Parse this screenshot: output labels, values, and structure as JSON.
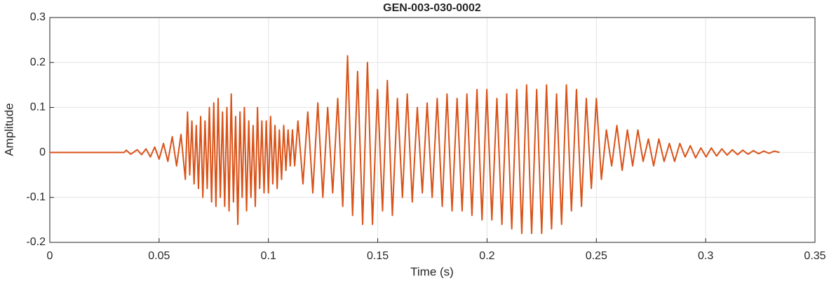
{
  "chart_data": {
    "type": "line",
    "title": "GEN-003-030-0002",
    "x_label": "Time (s)",
    "y_label": "Amplitude",
    "color": "#d95319",
    "grid": true,
    "xlim": [
      0,
      0.35
    ],
    "xticks": [
      0,
      0.05,
      0.1,
      0.15,
      0.2,
      0.25,
      0.3,
      0.35
    ],
    "ylim": [
      -0.2,
      0.3
    ],
    "yticks": [
      -0.2,
      -0.1,
      0,
      0.1,
      0.2,
      0.3
    ],
    "x": [
      0,
      0.01,
      0.02,
      0.034,
      0.035,
      0.037,
      0.04,
      0.042,
      0.044,
      0.046,
      0.048,
      0.05,
      0.052,
      0.054,
      0.056,
      0.058,
      0.06,
      0.062,
      0.063,
      0.064,
      0.065,
      0.066,
      0.067,
      0.068,
      0.069,
      0.07,
      0.071,
      0.072,
      0.073,
      0.074,
      0.075,
      0.076,
      0.077,
      0.078,
      0.079,
      0.08,
      0.081,
      0.082,
      0.083,
      0.084,
      0.085,
      0.086,
      0.087,
      0.088,
      0.089,
      0.09,
      0.091,
      0.092,
      0.093,
      0.094,
      0.095,
      0.096,
      0.097,
      0.098,
      0.099,
      0.1,
      0.101,
      0.102,
      0.103,
      0.104,
      0.105,
      0.106,
      0.107,
      0.108,
      0.109,
      0.11,
      0.111,
      0.112,
      0.1135,
      0.1158,
      0.118,
      0.1203,
      0.1226,
      0.1249,
      0.1271,
      0.1294,
      0.1317,
      0.134,
      0.1362,
      0.1385,
      0.1408,
      0.1431,
      0.1453,
      0.1476,
      0.1499,
      0.1522,
      0.1544,
      0.1567,
      0.159,
      0.1613,
      0.1635,
      0.1658,
      0.1681,
      0.1704,
      0.1726,
      0.1749,
      0.1772,
      0.1795,
      0.1817,
      0.184,
      0.1863,
      0.1886,
      0.1908,
      0.1931,
      0.1954,
      0.1977,
      0.1999,
      0.2022,
      0.2045,
      0.2068,
      0.209,
      0.2113,
      0.2136,
      0.2159,
      0.2181,
      0.2204,
      0.2227,
      0.225,
      0.2272,
      0.2295,
      0.2318,
      0.2341,
      0.2363,
      0.2386,
      0.2409,
      0.2432,
      0.2454,
      0.2477,
      0.25,
      0.2523,
      0.2546,
      0.257,
      0.2594,
      0.2618,
      0.2642,
      0.2666,
      0.269,
      0.2714,
      0.2738,
      0.2762,
      0.2786,
      0.281,
      0.2834,
      0.2858,
      0.2882,
      0.2906,
      0.293,
      0.2954,
      0.2978,
      0.3002,
      0.3026,
      0.305,
      0.3074,
      0.3098,
      0.3122,
      0.3146,
      0.317,
      0.3194,
      0.3218,
      0.3242,
      0.3266,
      0.329,
      0.3314,
      0.3338
    ],
    "values": [
      0,
      0,
      0,
      0,
      0.005,
      -0.004,
      0.006,
      -0.005,
      0.008,
      -0.01,
      0.012,
      -0.015,
      0.02,
      -0.02,
      0.035,
      -0.03,
      0.04,
      -0.06,
      0.09,
      -0.05,
      0.07,
      -0.07,
      0.06,
      -0.08,
      0.08,
      -0.1,
      0.07,
      -0.08,
      0.1,
      -0.11,
      0.11,
      -0.12,
      0.12,
      -0.1,
      0.09,
      -0.12,
      0.1,
      -0.13,
      0.13,
      -0.11,
      0.08,
      -0.16,
      0.09,
      -0.1,
      0.1,
      -0.13,
      0.07,
      -0.1,
      0.06,
      -0.12,
      0.1,
      -0.08,
      0.07,
      -0.09,
      0.07,
      -0.09,
      0.08,
      -0.07,
      0.06,
      -0.08,
      0.05,
      -0.06,
      0.06,
      -0.04,
      0.05,
      -0.03,
      0.05,
      -0.03,
      0.07,
      -0.07,
      0.09,
      -0.09,
      0.11,
      -0.1,
      0.1,
      -0.09,
      0.12,
      -0.12,
      0.215,
      -0.14,
      0.18,
      -0.16,
      0.2,
      -0.16,
      0.14,
      -0.13,
      0.16,
      -0.14,
      0.12,
      -0.1,
      0.13,
      -0.11,
      0.1,
      -0.09,
      0.11,
      -0.1,
      0.12,
      -0.12,
      0.13,
      -0.13,
      0.12,
      -0.13,
      0.13,
      -0.14,
      0.14,
      -0.15,
      0.14,
      -0.15,
      0.12,
      -0.16,
      0.13,
      -0.17,
      0.14,
      -0.18,
      0.15,
      -0.18,
      0.14,
      -0.18,
      0.15,
      -0.17,
      0.13,
      -0.16,
      0.15,
      -0.13,
      0.14,
      -0.12,
      0.12,
      -0.08,
      0.12,
      -0.06,
      0.05,
      -0.03,
      0.06,
      -0.04,
      0.05,
      -0.03,
      0.05,
      -0.02,
      0.03,
      -0.03,
      0.03,
      -0.02,
      0.02,
      -0.02,
      0.02,
      -0.01,
      0.015,
      -0.012,
      0.01,
      -0.01,
      0.01,
      -0.008,
      0.008,
      -0.006,
      0.006,
      -0.005,
      0.005,
      -0.004,
      0.004,
      -0.003,
      0.003,
      -0.002,
      0.003,
      0
    ]
  }
}
